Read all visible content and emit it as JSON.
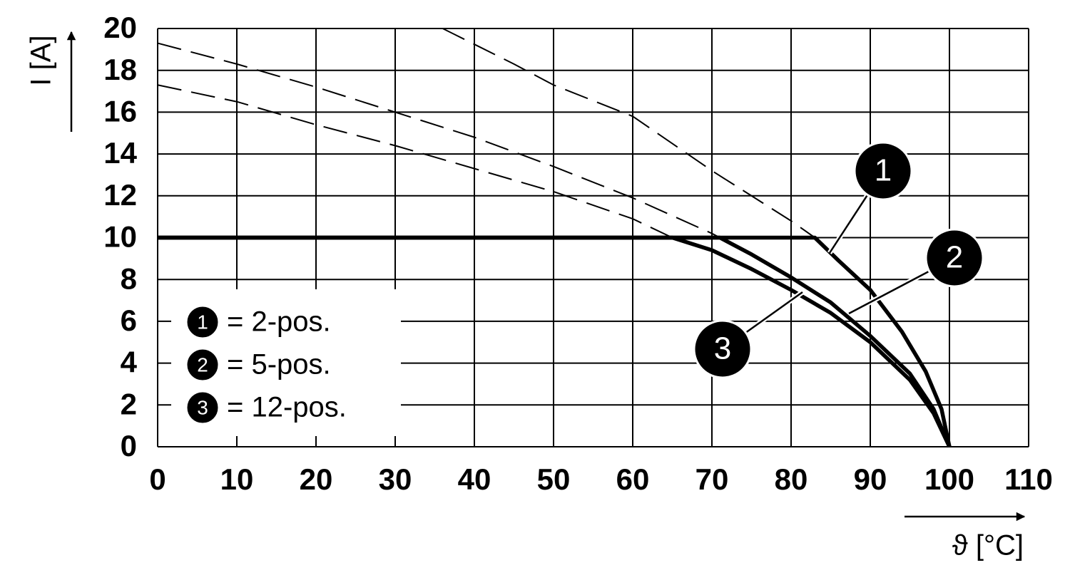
{
  "chart_data": {
    "type": "line",
    "x_label": "ϑ [°C]",
    "y_label": "I [A]",
    "xlim": [
      0,
      110
    ],
    "xticks": [
      0,
      10,
      20,
      30,
      40,
      50,
      60,
      70,
      80,
      90,
      100,
      110
    ],
    "ylim": [
      0,
      20
    ],
    "yticks": [
      0,
      2,
      4,
      6,
      8,
      10,
      12,
      14,
      16,
      18,
      20
    ],
    "grid": true,
    "legend": "lower left",
    "color": "#000000",
    "series": [
      {
        "label": "1",
        "name": "= 2-pos.",
        "x": [
          0,
          83,
          86,
          90,
          94,
          97,
          99,
          100
        ],
        "values": [
          10,
          10,
          8.9,
          7.5,
          5.5,
          3.6,
          1.8,
          0
        ],
        "dashed_x": [
          36,
          45,
          50,
          60,
          70,
          80,
          83
        ],
        "dashed_values": [
          20,
          18.3,
          17.3,
          15.8,
          13.2,
          10.8,
          10
        ]
      },
      {
        "label": "2",
        "name": "= 5-pos.",
        "x": [
          0,
          71,
          75,
          80,
          85,
          90,
          95,
          98,
          100
        ],
        "values": [
          10,
          10,
          9.2,
          8.1,
          6.9,
          5.3,
          3.5,
          1.8,
          0
        ],
        "dashed_x": [
          0,
          10,
          20,
          30,
          40,
          50,
          60,
          70,
          71
        ],
        "dashed_values": [
          19.3,
          18.3,
          17.2,
          16,
          14.8,
          13.4,
          11.9,
          10.2,
          10
        ]
      },
      {
        "label": "3",
        "name": "= 12-pos.",
        "x": [
          0,
          65,
          70,
          75,
          80,
          85,
          90,
          95,
          98,
          100
        ],
        "values": [
          10,
          10,
          9.4,
          8.5,
          7.5,
          6.4,
          5,
          3.2,
          1.6,
          0
        ],
        "dashed_x": [
          0,
          10,
          20,
          30,
          40,
          50,
          60,
          65
        ],
        "dashed_values": [
          17.3,
          16.5,
          15.4,
          14.4,
          13.3,
          12.2,
          10.9,
          10
        ]
      }
    ]
  }
}
